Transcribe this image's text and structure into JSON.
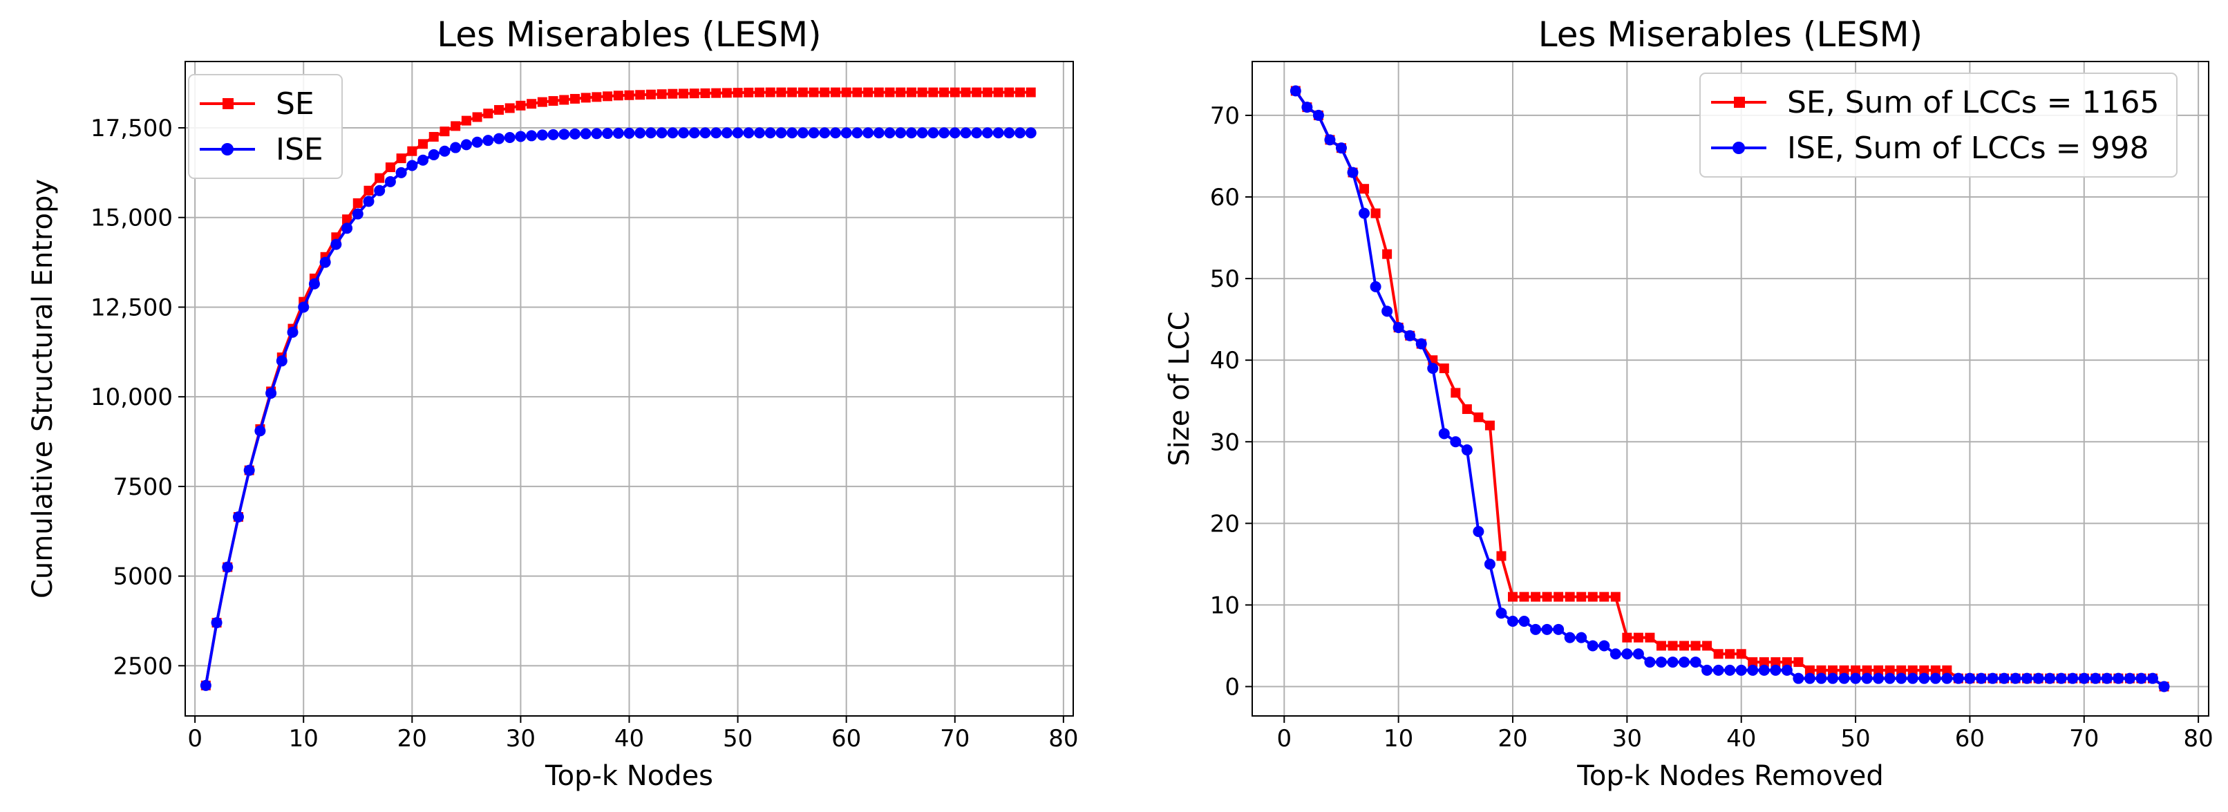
{
  "chart_data": [
    {
      "type": "line",
      "title": "Les Miserables (LESM)",
      "xlabel": "Top-k Nodes",
      "ylabel": "Cumulative Structural Entropy",
      "xlim": [
        -0.9,
        80.9
      ],
      "ylim": [
        1100,
        19350
      ],
      "xticks": [
        0,
        10,
        20,
        30,
        40,
        50,
        60,
        70,
        80
      ],
      "yticks": [
        2500,
        5000,
        7500,
        10000,
        12500,
        15000,
        17500
      ],
      "yticklabels": [
        "2500",
        "5000",
        "7500",
        "10,000",
        "12,500",
        "15,000",
        "17,500"
      ],
      "grid": true,
      "legend": "upper-left",
      "series": [
        {
          "name": "SE",
          "color": "#ff0000",
          "marker": "square",
          "x": [
            1,
            2,
            3,
            4,
            5,
            6,
            7,
            8,
            9,
            10,
            11,
            12,
            13,
            14,
            15,
            16,
            17,
            18,
            19,
            20,
            21,
            22,
            23,
            24,
            25,
            26,
            27,
            28,
            29,
            30,
            31,
            32,
            33,
            34,
            35,
            36,
            37,
            38,
            39,
            40,
            41,
            42,
            43,
            44,
            45,
            46,
            47,
            48,
            49,
            50,
            51,
            52,
            53,
            54,
            55,
            56,
            57,
            58,
            59,
            60,
            61,
            62,
            63,
            64,
            65,
            66,
            67,
            68,
            69,
            70,
            71,
            72,
            73,
            74,
            75,
            76,
            77
          ],
          "y": [
            1950,
            3700,
            5250,
            6650,
            7950,
            9100,
            10150,
            11100,
            11900,
            12650,
            13300,
            13900,
            14450,
            14950,
            15400,
            15750,
            16100,
            16400,
            16650,
            16850,
            17050,
            17250,
            17400,
            17550,
            17700,
            17800,
            17900,
            18000,
            18050,
            18120,
            18170,
            18220,
            18250,
            18280,
            18310,
            18340,
            18360,
            18380,
            18400,
            18410,
            18420,
            18430,
            18440,
            18450,
            18455,
            18460,
            18465,
            18470,
            18475,
            18480,
            18485,
            18488,
            18490,
            18490,
            18490,
            18490,
            18490,
            18490,
            18490,
            18490,
            18490,
            18490,
            18490,
            18490,
            18490,
            18490,
            18490,
            18490,
            18490,
            18490,
            18490,
            18490,
            18490,
            18490,
            18490,
            18490,
            18490
          ]
        },
        {
          "name": "ISE",
          "color": "#0000ff",
          "marker": "circle",
          "x": [
            1,
            2,
            3,
            4,
            5,
            6,
            7,
            8,
            9,
            10,
            11,
            12,
            13,
            14,
            15,
            16,
            17,
            18,
            19,
            20,
            21,
            22,
            23,
            24,
            25,
            26,
            27,
            28,
            29,
            30,
            31,
            32,
            33,
            34,
            35,
            36,
            37,
            38,
            39,
            40,
            41,
            42,
            43,
            44,
            45,
            46,
            47,
            48,
            49,
            50,
            51,
            52,
            53,
            54,
            55,
            56,
            57,
            58,
            59,
            60,
            61,
            62,
            63,
            64,
            65,
            66,
            67,
            68,
            69,
            70,
            71,
            72,
            73,
            74,
            75,
            76,
            77
          ],
          "y": [
            1950,
            3700,
            5250,
            6650,
            7950,
            9050,
            10100,
            11000,
            11800,
            12500,
            13150,
            13750,
            14250,
            14700,
            15100,
            15450,
            15750,
            16000,
            16250,
            16450,
            16600,
            16750,
            16850,
            16950,
            17030,
            17100,
            17150,
            17200,
            17230,
            17260,
            17280,
            17300,
            17310,
            17320,
            17330,
            17335,
            17340,
            17345,
            17350,
            17350,
            17355,
            17360,
            17360,
            17360,
            17360,
            17360,
            17360,
            17360,
            17360,
            17360,
            17360,
            17360,
            17360,
            17360,
            17360,
            17360,
            17360,
            17360,
            17360,
            17360,
            17360,
            17360,
            17360,
            17360,
            17360,
            17360,
            17360,
            17360,
            17360,
            17360,
            17360,
            17360,
            17360,
            17360,
            17360,
            17360,
            17360
          ]
        }
      ]
    },
    {
      "type": "line",
      "title": "Les Miserables (LESM)",
      "xlabel": "Top-k Nodes Removed",
      "ylabel": "Size of LCC",
      "xlim": [
        -2.8,
        80.9
      ],
      "ylim": [
        -3.6,
        76.6
      ],
      "xticks": [
        0,
        10,
        20,
        30,
        40,
        50,
        60,
        70,
        80
      ],
      "yticks": [
        0,
        10,
        20,
        30,
        40,
        50,
        60,
        70
      ],
      "yticklabels": [
        "0",
        "10",
        "20",
        "30",
        "40",
        "50",
        "60",
        "70"
      ],
      "grid": true,
      "legend": "upper-right",
      "series": [
        {
          "name": "SE,  Sum of LCCs = 1165",
          "color": "#ff0000",
          "marker": "square",
          "x": [
            1,
            2,
            3,
            4,
            5,
            6,
            7,
            8,
            9,
            10,
            11,
            12,
            13,
            14,
            15,
            16,
            17,
            18,
            19,
            20,
            21,
            22,
            23,
            24,
            25,
            26,
            27,
            28,
            29,
            30,
            31,
            32,
            33,
            34,
            35,
            36,
            37,
            38,
            39,
            40,
            41,
            42,
            43,
            44,
            45,
            46,
            47,
            48,
            49,
            50,
            51,
            52,
            53,
            54,
            55,
            56,
            57,
            58,
            59,
            60,
            61,
            62,
            63,
            64,
            65,
            66,
            67,
            68,
            69,
            70,
            71,
            72,
            73,
            74,
            75,
            76,
            77
          ],
          "y": [
            73,
            71,
            70,
            67,
            66,
            63,
            61,
            58,
            53,
            44,
            43,
            42,
            40,
            39,
            36,
            34,
            33,
            32,
            16,
            11,
            11,
            11,
            11,
            11,
            11,
            11,
            11,
            11,
            11,
            6,
            6,
            6,
            5,
            5,
            5,
            5,
            5,
            4,
            4,
            4,
            3,
            3,
            3,
            3,
            3,
            2,
            2,
            2,
            2,
            2,
            2,
            2,
            2,
            2,
            2,
            2,
            2,
            2,
            1,
            1,
            1,
            1,
            1,
            1,
            1,
            1,
            1,
            1,
            1,
            1,
            1,
            1,
            1,
            1,
            1,
            1,
            0
          ]
        },
        {
          "name": "ISE, Sum of LCCs = 998",
          "color": "#0000ff",
          "marker": "circle",
          "x": [
            1,
            2,
            3,
            4,
            5,
            6,
            7,
            8,
            9,
            10,
            11,
            12,
            13,
            14,
            15,
            16,
            17,
            18,
            19,
            20,
            21,
            22,
            23,
            24,
            25,
            26,
            27,
            28,
            29,
            30,
            31,
            32,
            33,
            34,
            35,
            36,
            37,
            38,
            39,
            40,
            41,
            42,
            43,
            44,
            45,
            46,
            47,
            48,
            49,
            50,
            51,
            52,
            53,
            54,
            55,
            56,
            57,
            58,
            59,
            60,
            61,
            62,
            63,
            64,
            65,
            66,
            67,
            68,
            69,
            70,
            71,
            72,
            73,
            74,
            75,
            76,
            77
          ],
          "y": [
            73,
            71,
            70,
            67,
            66,
            63,
            58,
            49,
            46,
            44,
            43,
            42,
            39,
            31,
            30,
            29,
            19,
            15,
            9,
            8,
            8,
            7,
            7,
            7,
            6,
            6,
            5,
            5,
            4,
            4,
            4,
            3,
            3,
            3,
            3,
            3,
            2,
            2,
            2,
            2,
            2,
            2,
            2,
            2,
            1,
            1,
            1,
            1,
            1,
            1,
            1,
            1,
            1,
            1,
            1,
            1,
            1,
            1,
            1,
            1,
            1,
            1,
            1,
            1,
            1,
            1,
            1,
            1,
            1,
            1,
            1,
            1,
            1,
            1,
            1,
            1,
            0
          ]
        }
      ]
    }
  ]
}
